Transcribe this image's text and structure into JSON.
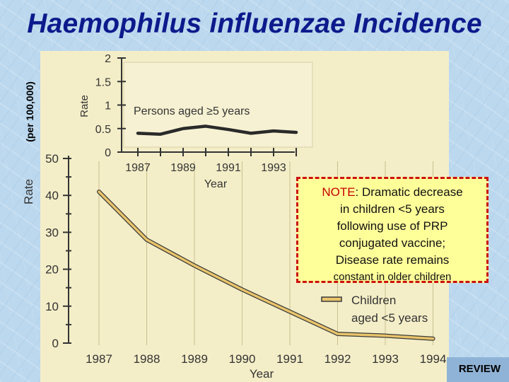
{
  "title": "Haemophilus influenzae Incidence",
  "side_label": "(per 100,000)",
  "note": {
    "line1_lead": "NOTE",
    "line1_rest": ": Dramatic decrease",
    "line2": "in children <5 years",
    "line3": "following use of PRP",
    "line4": "conjugated vaccine;",
    "line5": "Disease rate remains",
    "line6": "constant in older children"
  },
  "review_label": "REVIEW",
  "colors": {
    "title": "#0d1a8c",
    "panel": "#f4eec8",
    "line": "#e9c46a",
    "line_edge": "#3a3a3a",
    "note_bg": "#ffff9a",
    "note_border": "#cc1111"
  },
  "chart_data": [
    {
      "type": "line",
      "xlabel": "Year",
      "ylabel": "Rate",
      "x": [
        1987,
        1988,
        1989,
        1990,
        1991,
        1992,
        1993,
        1994
      ],
      "x_tick_labels": [
        "1987",
        "1988",
        "1989",
        "1990",
        "1991",
        "1992",
        "1993",
        "1994"
      ],
      "y_tick_labels": [
        "0",
        "10",
        "20",
        "30",
        "40",
        "50"
      ],
      "ylim": [
        0,
        50
      ],
      "series": [
        {
          "name": "Children aged <5 years",
          "values": [
            41,
            28,
            21,
            14.5,
            8.5,
            2.5,
            2,
            1.2
          ]
        }
      ],
      "legend_lines": [
        "Children",
        "aged <5 years"
      ],
      "legend_position": "bottom-right"
    },
    {
      "type": "line",
      "xlabel": "Year",
      "ylabel": "Rate",
      "x": [
        1987,
        1988,
        1989,
        1990,
        1991,
        1992,
        1993,
        1994
      ],
      "x_tick_labels": [
        "1987",
        "1989",
        "1991",
        "1993"
      ],
      "x_tick_years": [
        1987,
        1989,
        1991,
        1993
      ],
      "y_tick_labels": [
        "0",
        "0.5",
        "1",
        "1.5",
        "2"
      ],
      "y_ticks": [
        0,
        0.5,
        1,
        1.5,
        2
      ],
      "ylim": [
        0,
        2
      ],
      "series": [
        {
          "name": "Persons aged ≥5 years",
          "values": [
            0.4,
            0.38,
            0.5,
            0.55,
            0.48,
            0.4,
            0.45,
            0.42
          ]
        }
      ],
      "legend_lines": [
        "Persons aged ≥5 years"
      ],
      "legend_position": "inset top"
    }
  ]
}
